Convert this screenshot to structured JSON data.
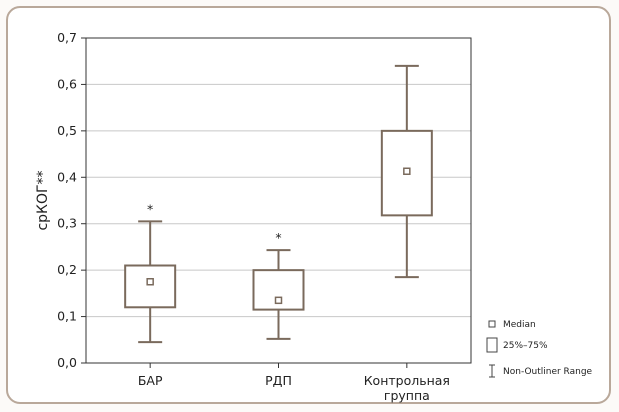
{
  "colors": {
    "box": "#7a6a5c",
    "grid": "#c8c8c8",
    "axis": "#333333",
    "frame_border": "#b9a89a"
  },
  "chart_data": {
    "type": "boxplot",
    "ylabel": "срКОГ**",
    "ylim": [
      0.0,
      0.7
    ],
    "yticks": [
      "0,0",
      "0,1",
      "0,2",
      "0,3",
      "0,4",
      "0,5",
      "0,6",
      "0,7"
    ],
    "grid": "horizontal",
    "legend_position": "right-bottom",
    "categories": [
      {
        "label_lines": [
          "БАР"
        ],
        "median": 0.175,
        "q1": 0.12,
        "q3": 0.21,
        "min": 0.045,
        "max": 0.305,
        "mark": "*"
      },
      {
        "label_lines": [
          "РДП"
        ],
        "median": 0.135,
        "q1": 0.115,
        "q3": 0.2,
        "min": 0.052,
        "max": 0.243,
        "mark": "*"
      },
      {
        "label_lines": [
          "Контрольная",
          "группа"
        ],
        "median": 0.413,
        "q1": 0.318,
        "q3": 0.5,
        "min": 0.185,
        "max": 0.64,
        "mark": ""
      }
    ],
    "legend": [
      {
        "icon": "median-marker-icon",
        "label": "Median"
      },
      {
        "icon": "box-icon",
        "label": "25%–75%"
      },
      {
        "icon": "whisker-range-icon",
        "label": "Non-Outliner Range"
      }
    ]
  }
}
